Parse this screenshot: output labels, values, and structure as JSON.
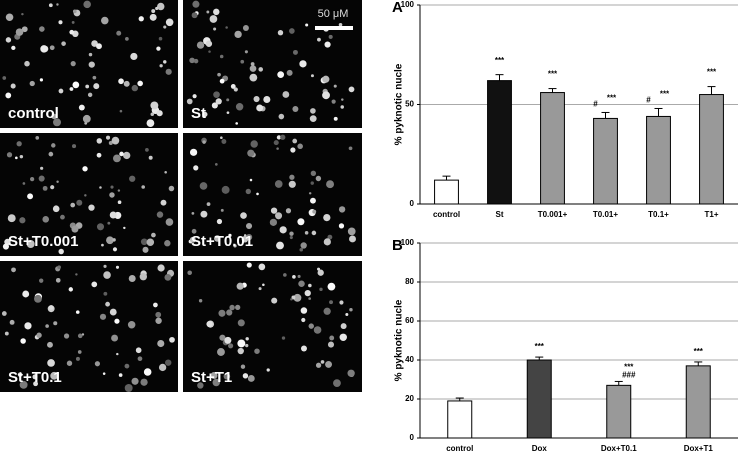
{
  "micrographs": {
    "labels": [
      "control",
      "St",
      "St+T0.001",
      "St+T0.01",
      "St+T0.1",
      "St+T1"
    ],
    "scale_bar": "50 μM"
  },
  "chart_data": [
    {
      "type": "bar",
      "title": "A",
      "y_label": "% pyknotic nucle",
      "categories": [
        "control",
        "St",
        "T0.001+",
        "T0.01+",
        "T0.1+",
        "T1+"
      ],
      "values": [
        12,
        62,
        56,
        43,
        44,
        55
      ],
      "errors": [
        2,
        3,
        2,
        3,
        4,
        4
      ],
      "colors": [
        "#ffffff",
        "#111111",
        "#999999",
        "#999999",
        "#999999",
        "#999999"
      ],
      "annotations": [
        null,
        [
          "***"
        ],
        [
          "***"
        ],
        [
          "#",
          "***"
        ],
        [
          "#",
          "***"
        ],
        [
          "***"
        ]
      ],
      "ylim": [
        0,
        100
      ],
      "yticks": [
        0,
        50,
        100
      ],
      "grid": true
    },
    {
      "type": "bar",
      "title": "B",
      "y_label": "% pyknotic nucle",
      "categories": [
        "control",
        "Dox",
        "Dox+T0.1",
        "Dox+T1"
      ],
      "values": [
        19,
        40,
        27,
        37
      ],
      "errors": [
        1.5,
        1.5,
        2,
        2
      ],
      "colors": [
        "#ffffff",
        "#444444",
        "#999999",
        "#999999"
      ],
      "annotations": [
        null,
        [
          "***"
        ],
        [
          "***",
          "###"
        ],
        [
          "***"
        ]
      ],
      "ylim": [
        0,
        100
      ],
      "yticks": [
        0,
        20,
        40,
        60,
        80,
        100
      ],
      "grid": true
    }
  ]
}
